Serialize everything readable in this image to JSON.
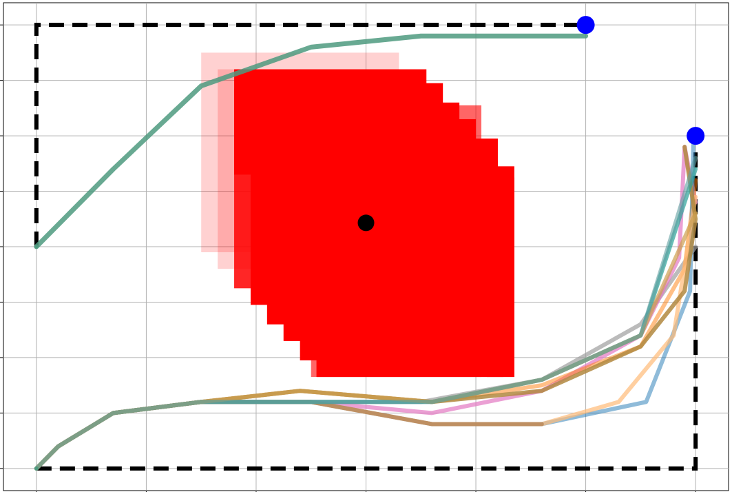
{
  "chart_data": {
    "type": "line",
    "title": "",
    "xlabel": "",
    "ylabel": "",
    "xlim": [
      -0.3,
      6.3
    ],
    "ylim": [
      -0.4,
      8.4
    ],
    "grid": true,
    "x_ticks": [
      0,
      1,
      2,
      3,
      4,
      5,
      6
    ],
    "y_ticks": [
      0,
      1,
      2,
      3,
      4,
      5,
      6,
      7,
      8
    ],
    "obstacle": {
      "color": "#ff0000",
      "center": [
        3.0,
        4.43
      ],
      "cells": [
        {
          "alpha": 0.18,
          "rect": [
            1.5,
            3.9,
            1.8,
            3.6
          ]
        },
        {
          "alpha": 0.18,
          "rect": [
            1.65,
            3.6,
            1.8,
            3.6
          ]
        },
        {
          "alpha": 0.85,
          "rect": [
            1.8,
            3.25,
            1.8,
            3.6
          ]
        },
        {
          "alpha": 0.6,
          "rect": [
            2.5,
            1.65,
            1.55,
            4.9
          ]
        },
        {
          "alpha": 1.0,
          "rect": [
            1.95,
            2.95,
            1.8,
            3.6
          ]
        },
        {
          "alpha": 1.0,
          "rect": [
            2.1,
            2.6,
            1.8,
            3.6
          ]
        },
        {
          "alpha": 1.0,
          "rect": [
            2.25,
            2.3,
            1.8,
            3.6
          ]
        },
        {
          "alpha": 1.0,
          "rect": [
            2.4,
            1.95,
            1.8,
            3.6
          ]
        },
        {
          "alpha": 1.0,
          "rect": [
            2.55,
            1.65,
            1.8,
            3.6
          ]
        }
      ]
    },
    "boundary_paths": [
      {
        "points": [
          [
            0,
            4.0
          ],
          [
            0,
            8.0
          ],
          [
            5.0,
            8.0
          ]
        ]
      },
      {
        "points": [
          [
            0,
            0
          ],
          [
            6.0,
            0
          ],
          [
            6.0,
            6.0
          ]
        ]
      }
    ],
    "start_points": [
      [
        0,
        4.0
      ],
      [
        0,
        0
      ]
    ],
    "goal_points": [
      [
        5.0,
        8.0
      ],
      [
        6.0,
        6.0
      ]
    ],
    "series": [
      {
        "color": "#4e9a7f",
        "alpha": 0.85,
        "width": 7,
        "points": [
          [
            0,
            4.0
          ],
          [
            0.7,
            5.4
          ],
          [
            1.5,
            6.9
          ],
          [
            2.5,
            7.6
          ],
          [
            3.5,
            7.8
          ],
          [
            5.0,
            7.8
          ]
        ]
      },
      {
        "color": "#9e9e9e",
        "alpha": 0.7,
        "width": 6,
        "points": [
          [
            0,
            0
          ],
          [
            0.2,
            0.4
          ],
          [
            0.7,
            1.0
          ],
          [
            1.5,
            1.2
          ],
          [
            2.5,
            1.2
          ],
          [
            3.5,
            1.2
          ],
          [
            4.6,
            1.6
          ],
          [
            5.5,
            2.6
          ],
          [
            6.0,
            4.0
          ]
        ]
      },
      {
        "color": "#e377c2",
        "alpha": 0.7,
        "width": 6,
        "points": [
          [
            0,
            0
          ],
          [
            0.2,
            0.4
          ],
          [
            0.7,
            1.0
          ],
          [
            1.5,
            1.2
          ],
          [
            2.5,
            1.2
          ],
          [
            3.6,
            1.0
          ],
          [
            4.6,
            1.4
          ],
          [
            5.5,
            2.4
          ],
          [
            5.85,
            3.8
          ],
          [
            5.9,
            5.8
          ],
          [
            6.0,
            4.8
          ]
        ]
      },
      {
        "color": "#ff7f0e",
        "alpha": 0.5,
        "width": 6,
        "points": [
          [
            0,
            0
          ],
          [
            0.2,
            0.4
          ],
          [
            0.7,
            1.0
          ],
          [
            1.5,
            1.2
          ],
          [
            2.4,
            1.4
          ],
          [
            3.6,
            1.2
          ],
          [
            4.6,
            1.5
          ],
          [
            5.5,
            2.2
          ],
          [
            5.9,
            3.6
          ],
          [
            6.0,
            5.2
          ]
        ]
      },
      {
        "color": "#1f77b4",
        "alpha": 0.5,
        "width": 6,
        "points": [
          [
            0,
            0
          ],
          [
            0.2,
            0.4
          ],
          [
            0.7,
            1.0
          ],
          [
            1.5,
            1.2
          ],
          [
            2.5,
            1.2
          ],
          [
            3.6,
            0.8
          ],
          [
            4.6,
            0.8
          ],
          [
            5.55,
            1.2
          ],
          [
            5.95,
            3.2
          ],
          [
            5.98,
            5.9
          ],
          [
            6.0,
            5.9
          ]
        ]
      },
      {
        "color": "#ffbb78",
        "alpha": 0.7,
        "width": 6,
        "points": [
          [
            0,
            0
          ],
          [
            0.2,
            0.4
          ],
          [
            0.7,
            1.0
          ],
          [
            1.5,
            1.2
          ],
          [
            2.5,
            1.2
          ],
          [
            3.6,
            0.8
          ],
          [
            4.6,
            0.8
          ],
          [
            5.3,
            1.2
          ],
          [
            5.8,
            2.4
          ],
          [
            6.0,
            4.9
          ]
        ]
      },
      {
        "color": "#b2883f",
        "alpha": 0.85,
        "width": 6,
        "points": [
          [
            0,
            0
          ],
          [
            0.2,
            0.4
          ],
          [
            0.7,
            1.0
          ],
          [
            1.5,
            1.2
          ],
          [
            2.4,
            1.4
          ],
          [
            3.6,
            1.2
          ],
          [
            4.6,
            1.4
          ],
          [
            5.5,
            2.2
          ],
          [
            5.9,
            3.2
          ],
          [
            6.0,
            4.5
          ],
          [
            5.9,
            5.8
          ]
        ]
      },
      {
        "color": "#b58455",
        "alpha": 0.8,
        "width": 6,
        "points": [
          [
            0,
            0
          ],
          [
            0.2,
            0.4
          ],
          [
            0.7,
            1.0
          ],
          [
            1.5,
            1.2
          ],
          [
            2.5,
            1.2
          ],
          [
            3.6,
            0.8
          ],
          [
            4.6,
            0.8
          ]
        ]
      },
      {
        "color": "#2aa198",
        "alpha": 0.7,
        "width": 6,
        "points": [
          [
            0,
            0
          ],
          [
            0.2,
            0.4
          ],
          [
            0.7,
            1.0
          ],
          [
            1.5,
            1.2
          ],
          [
            2.5,
            1.2
          ],
          [
            3.6,
            1.2
          ],
          [
            4.6,
            1.6
          ],
          [
            5.5,
            2.4
          ],
          [
            6.0,
            5.4
          ]
        ]
      },
      {
        "color": "#cda050",
        "alpha": 0.7,
        "width": 6,
        "points": [
          [
            0,
            0
          ],
          [
            0.2,
            0.4
          ],
          [
            0.7,
            1.0
          ],
          [
            1.5,
            1.2
          ],
          [
            2.4,
            1.4
          ],
          [
            3.6,
            1.2
          ],
          [
            4.6,
            1.6
          ],
          [
            5.5,
            2.4
          ],
          [
            6.0,
            4.6
          ]
        ]
      },
      {
        "color": "#5f9ea0",
        "alpha": 0.6,
        "width": 6,
        "points": [
          [
            0,
            0
          ],
          [
            0.2,
            0.4
          ],
          [
            0.7,
            1.0
          ],
          [
            1.5,
            1.2
          ],
          [
            2.5,
            1.2
          ],
          [
            3.6,
            1.2
          ],
          [
            4.6,
            1.6
          ],
          [
            5.5,
            2.4
          ],
          [
            6.0,
            5.6
          ]
        ]
      }
    ]
  }
}
